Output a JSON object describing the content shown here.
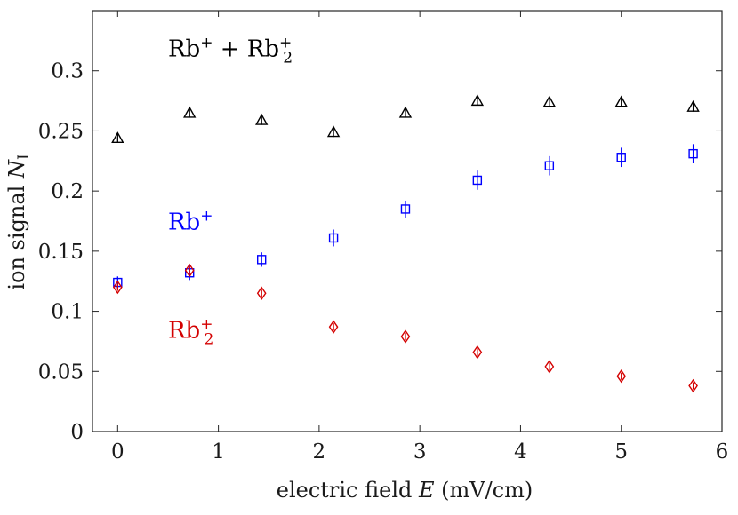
{
  "chart_data": {
    "type": "scatter",
    "title": "",
    "xlabel": "electric field E (mV/cm)",
    "ylabel": "ion signal N_I",
    "xlabel_parts": {
      "prefix": "electric field ",
      "var": "E",
      "suffix": " (mV/cm)"
    },
    "ylabel_parts": {
      "prefix": "ion signal ",
      "var": "N",
      "sub": "I"
    },
    "xlim": [
      -0.25,
      6
    ],
    "ylim": [
      0,
      0.35
    ],
    "xticks": [
      0,
      1,
      2,
      3,
      4,
      5,
      6
    ],
    "xtick_labels": [
      "0",
      "1",
      "2",
      "3",
      "4",
      "5",
      "6"
    ],
    "yticks": [
      0,
      0.05,
      0.1,
      0.15,
      0.2,
      0.25,
      0.3
    ],
    "ytick_labels": [
      "0",
      "0.05",
      "0.1",
      "0.15",
      "0.2",
      "0.25",
      "0.3"
    ],
    "grid": false,
    "series": [
      {
        "name": "Rb+ + Rb2+",
        "marker": "triangle",
        "color": "#000000",
        "x": [
          0,
          0.714,
          1.429,
          2.143,
          2.857,
          3.571,
          4.286,
          5.0,
          5.714
        ],
        "y": [
          0.244,
          0.265,
          0.259,
          0.249,
          0.265,
          0.275,
          0.274,
          0.274,
          0.27
        ],
        "err": [
          0.004,
          0.004,
          0.004,
          0.004,
          0.004,
          0.004,
          0.004,
          0.004,
          0.004
        ]
      },
      {
        "name": "Rb+",
        "marker": "square",
        "color": "#0000ff",
        "x": [
          0,
          0.714,
          1.429,
          2.143,
          2.857,
          3.571,
          4.286,
          5.0,
          5.714
        ],
        "y": [
          0.124,
          0.132,
          0.143,
          0.161,
          0.185,
          0.209,
          0.221,
          0.228,
          0.231
        ],
        "err": [
          0.005,
          0.006,
          0.006,
          0.007,
          0.007,
          0.008,
          0.008,
          0.008,
          0.008
        ]
      },
      {
        "name": "Rb2+",
        "marker": "diamond",
        "color": "#d40000",
        "x": [
          0,
          0.714,
          1.429,
          2.143,
          2.857,
          3.571,
          4.286,
          5.0,
          5.714
        ],
        "y": [
          0.12,
          0.134,
          0.115,
          0.087,
          0.079,
          0.066,
          0.054,
          0.046,
          0.038
        ],
        "err": [
          0.003,
          0.003,
          0.003,
          0.003,
          0.003,
          0.003,
          0.003,
          0.003,
          0.003
        ]
      }
    ],
    "annotations": [
      {
        "name": "total",
        "parts": [
          "Rb",
          "+",
          " + Rb",
          "2",
          "+"
        ],
        "color": "#000000",
        "x": 0.5,
        "y": 0.312
      },
      {
        "name": "monomer",
        "parts": [
          "Rb",
          "+"
        ],
        "color": "#0000ff",
        "x": 0.5,
        "y": 0.168
      },
      {
        "name": "dimer",
        "parts": [
          "Rb",
          "2",
          "+"
        ],
        "color": "#d40000",
        "x": 0.5,
        "y": 0.078
      }
    ]
  }
}
